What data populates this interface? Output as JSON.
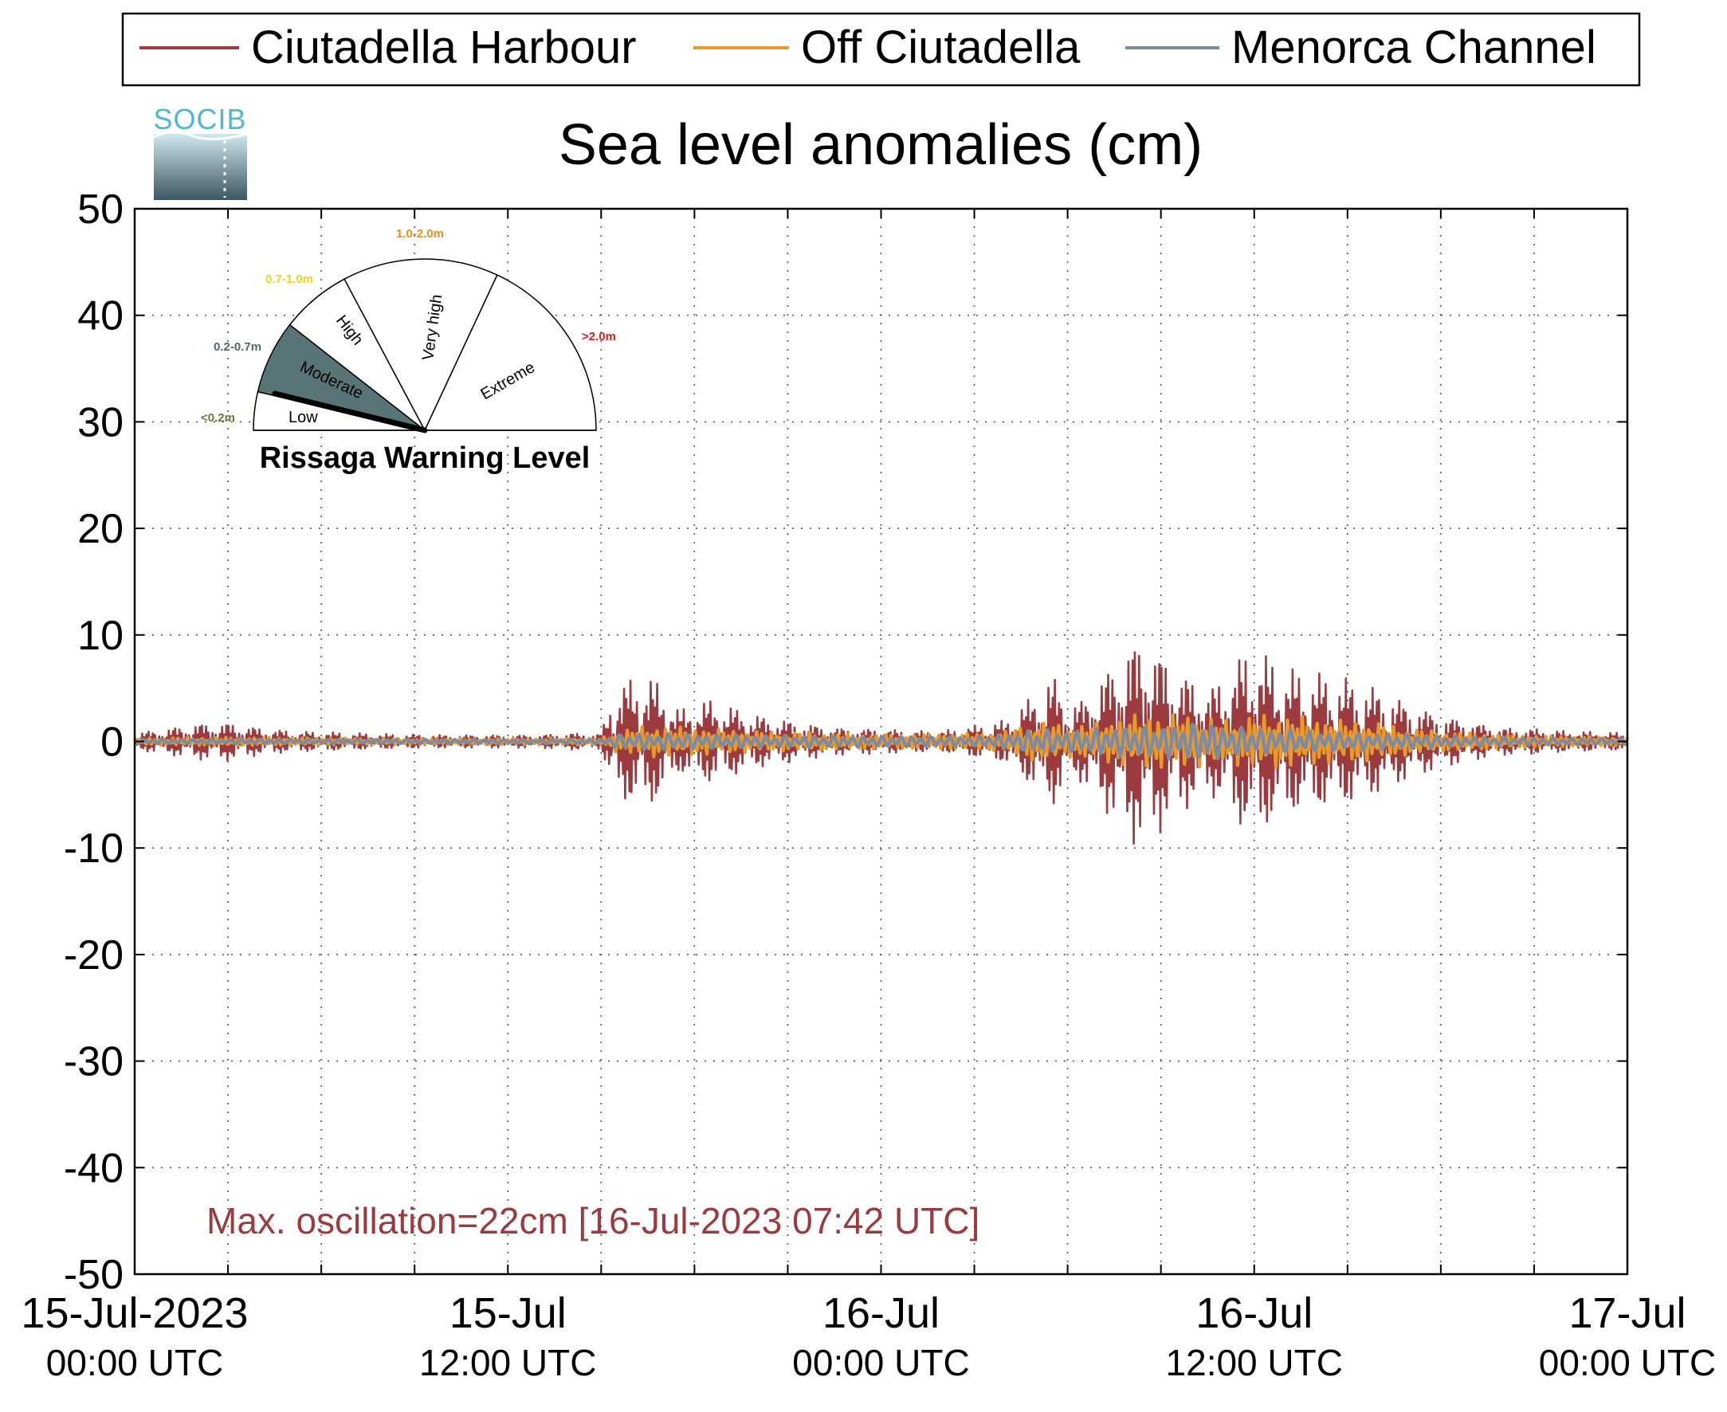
{
  "logo": {
    "text": "SOCIB",
    "colors": {
      "text": "#4fb8cf",
      "top": "#cfe9ef",
      "bottom": "#3c5560"
    }
  },
  "legend": {
    "placement": "top",
    "entries": [
      {
        "label": "Ciutadella Harbour",
        "color": "#9b3b3f"
      },
      {
        "label": "Off Ciutadella",
        "color": "#e89a2c"
      },
      {
        "label": "Menorca Channel",
        "color": "#7d8aa3"
      }
    ]
  },
  "chart_data": {
    "type": "line",
    "title": "Sea level anomalies (cm)",
    "xlabel": "",
    "ylabel": "",
    "x_unit": "hours from 15-Jul-2023 00:00 UTC",
    "xlim": [
      0,
      48
    ],
    "ylim": [
      -50,
      50
    ],
    "y_ticks": [
      -50,
      -40,
      -30,
      -20,
      -10,
      0,
      10,
      20,
      30,
      40,
      50
    ],
    "x_ticks": [
      {
        "hour": 0,
        "line1": "15-Jul-2023",
        "line2": "00:00 UTC"
      },
      {
        "hour": 12,
        "line1": "15-Jul",
        "line2": "12:00 UTC"
      },
      {
        "hour": 24,
        "line1": "16-Jul",
        "line2": "00:00 UTC"
      },
      {
        "hour": 36,
        "line1": "16-Jul",
        "line2": "12:00 UTC"
      },
      {
        "hour": 48,
        "line1": "17-Jul",
        "line2": "00:00 UTC"
      }
    ],
    "x_grid_hours": [
      3,
      6,
      9,
      15,
      18,
      21,
      27,
      30,
      33,
      39,
      42,
      45
    ],
    "grid": true,
    "grid_style": "dotted",
    "series": [
      {
        "name": "Ciutadella Harbour",
        "color": "#9b3b3f",
        "envelope": [
          [
            0.0,
            0.8
          ],
          [
            1.0,
            1.2
          ],
          [
            2.0,
            1.7
          ],
          [
            3.0,
            1.8
          ],
          [
            4.0,
            1.3
          ],
          [
            5.0,
            1.0
          ],
          [
            6.0,
            0.9
          ],
          [
            8.0,
            0.7
          ],
          [
            10.0,
            0.6
          ],
          [
            12.0,
            0.6
          ],
          [
            13.0,
            0.6
          ],
          [
            14.0,
            0.8
          ],
          [
            15.0,
            0.7
          ],
          [
            15.3,
            4.0
          ],
          [
            15.6,
            5.5
          ],
          [
            16.0,
            6.0
          ],
          [
            16.5,
            6.5
          ],
          [
            17.0,
            5.0
          ],
          [
            17.5,
            3.0
          ],
          [
            18.0,
            3.5
          ],
          [
            18.5,
            4.0
          ],
          [
            19.0,
            3.5
          ],
          [
            20.0,
            2.5
          ],
          [
            21.0,
            2.0
          ],
          [
            22.0,
            1.5
          ],
          [
            23.0,
            1.2
          ],
          [
            24.0,
            1.2
          ],
          [
            25.0,
            1.0
          ],
          [
            26.0,
            1.0
          ],
          [
            27.0,
            1.5
          ],
          [
            28.0,
            2.0
          ],
          [
            28.5,
            3.5
          ],
          [
            29.0,
            4.5
          ],
          [
            29.5,
            6.5
          ],
          [
            30.0,
            3.5
          ],
          [
            30.5,
            4.0
          ],
          [
            31.0,
            6.0
          ],
          [
            31.5,
            7.5
          ],
          [
            32.0,
            9.5
          ],
          [
            32.5,
            10.0
          ],
          [
            33.0,
            8.5
          ],
          [
            33.5,
            7.0
          ],
          [
            34.0,
            6.0
          ],
          [
            34.5,
            5.0
          ],
          [
            35.0,
            6.0
          ],
          [
            35.5,
            8.0
          ],
          [
            36.0,
            9.0
          ],
          [
            36.5,
            8.0
          ],
          [
            37.0,
            7.0
          ],
          [
            38.0,
            6.5
          ],
          [
            39.0,
            6.0
          ],
          [
            40.0,
            5.0
          ],
          [
            41.0,
            3.5
          ],
          [
            42.0,
            2.5
          ],
          [
            43.0,
            1.8
          ],
          [
            44.0,
            1.3
          ],
          [
            45.0,
            1.2
          ],
          [
            46.0,
            1.0
          ],
          [
            47.0,
            0.9
          ],
          [
            48.0,
            0.8
          ]
        ]
      },
      {
        "name": "Off Ciutadella",
        "color": "#e89a2c",
        "envelope": [
          [
            0.0,
            0.3
          ],
          [
            2.0,
            0.4
          ],
          [
            4.0,
            0.4
          ],
          [
            8.0,
            0.3
          ],
          [
            12.0,
            0.3
          ],
          [
            15.0,
            0.3
          ],
          [
            15.5,
            1.0
          ],
          [
            16.5,
            1.5
          ],
          [
            18.0,
            1.3
          ],
          [
            20.0,
            1.0
          ],
          [
            24.0,
            0.7
          ],
          [
            27.0,
            0.8
          ],
          [
            28.0,
            1.0
          ],
          [
            29.0,
            2.0
          ],
          [
            30.0,
            1.5
          ],
          [
            31.0,
            1.8
          ],
          [
            32.0,
            2.5
          ],
          [
            33.0,
            2.5
          ],
          [
            34.0,
            2.5
          ],
          [
            35.0,
            2.0
          ],
          [
            36.0,
            2.5
          ],
          [
            37.0,
            2.5
          ],
          [
            38.0,
            2.2
          ],
          [
            39.0,
            2.0
          ],
          [
            40.0,
            1.8
          ],
          [
            41.0,
            1.3
          ],
          [
            42.0,
            1.0
          ],
          [
            44.0,
            0.7
          ],
          [
            46.0,
            0.5
          ],
          [
            48.0,
            0.4
          ]
        ]
      },
      {
        "name": "Menorca Channel",
        "color": "#7d8aa3",
        "envelope": [
          [
            0.0,
            0.2
          ],
          [
            4.0,
            0.2
          ],
          [
            8.0,
            0.2
          ],
          [
            12.0,
            0.2
          ],
          [
            15.0,
            0.2
          ],
          [
            15.5,
            0.7
          ],
          [
            17.0,
            0.8
          ],
          [
            20.0,
            0.6
          ],
          [
            24.0,
            0.5
          ],
          [
            27.0,
            0.5
          ],
          [
            28.0,
            0.7
          ],
          [
            29.0,
            1.2
          ],
          [
            30.0,
            1.0
          ],
          [
            31.0,
            1.3
          ],
          [
            32.0,
            1.5
          ],
          [
            33.0,
            1.6
          ],
          [
            34.0,
            1.8
          ],
          [
            34.5,
            2.0
          ],
          [
            35.0,
            1.5
          ],
          [
            36.0,
            1.3
          ],
          [
            37.0,
            1.2
          ],
          [
            38.0,
            1.0
          ],
          [
            40.0,
            0.8
          ],
          [
            42.0,
            0.6
          ],
          [
            44.0,
            0.4
          ],
          [
            46.0,
            0.3
          ],
          [
            48.0,
            0.3
          ]
        ]
      }
    ],
    "annotation": "Max. oscillation=22cm [16-Jul-2023 07:42 UTC]",
    "annotation_color": "#9b3b3f"
  },
  "gauge": {
    "title": "Rissaga Warning Level",
    "sectors": [
      {
        "label": "Low",
        "range": "<0.2m",
        "range_color": "#6b7a3a",
        "fill": "#ffffff"
      },
      {
        "label": "Moderate",
        "range": "0.2-0.7m",
        "range_color": "#4f6b72",
        "fill": "#587477"
      },
      {
        "label": "High",
        "range": "0.7-1.0m",
        "range_color": "#f2d21b",
        "fill": "#ffffff"
      },
      {
        "label": "Very high",
        "range": "1.0-2.0m",
        "range_color": "#f08a1c",
        "fill": "#ffffff"
      },
      {
        "label": "Extreme",
        "range": ">2.0m",
        "range_color": "#e01a1a",
        "fill": "#ffffff"
      }
    ],
    "needle_level_m": 0.22
  }
}
